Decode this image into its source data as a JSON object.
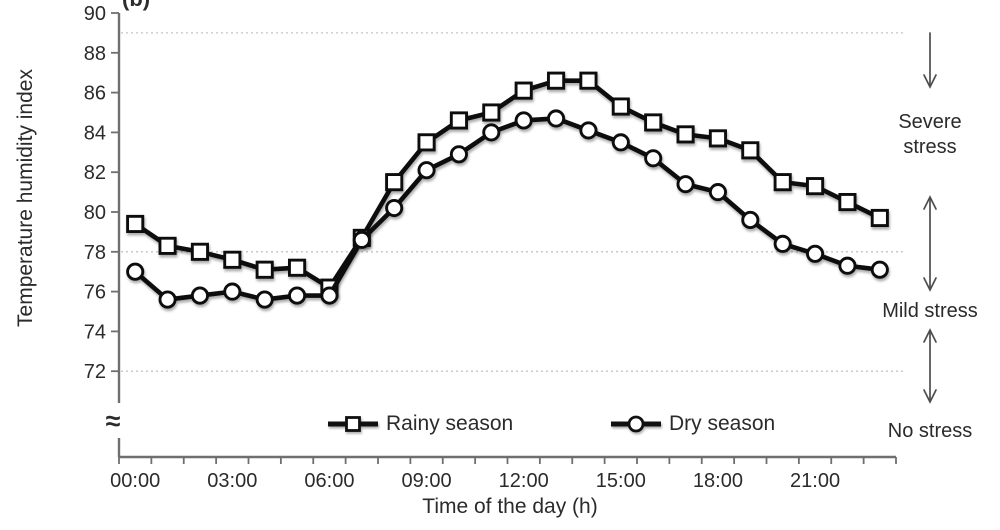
{
  "chart_data": {
    "type": "line",
    "panel_label": "(b)",
    "title": "",
    "xlabel": "Time of the day (h)",
    "ylabel": "Temperature humidity index",
    "x_categories": [
      "00:00",
      "01:00",
      "02:00",
      "03:00",
      "04:00",
      "05:00",
      "06:00",
      "07:00",
      "08:00",
      "09:00",
      "10:00",
      "11:00",
      "12:00",
      "13:00",
      "14:00",
      "15:00",
      "16:00",
      "17:00",
      "18:00",
      "19:00",
      "20:00",
      "21:00",
      "22:00",
      "23:00"
    ],
    "x_tick_labels": [
      "00:00",
      "03:00",
      "06:00",
      "09:00",
      "12:00",
      "15:00",
      "18:00",
      "21:00"
    ],
    "x_tick_label_hours": [
      0,
      3,
      6,
      9,
      12,
      15,
      18,
      21
    ],
    "y_ticks": [
      90,
      88,
      86,
      84,
      82,
      80,
      78,
      76,
      74,
      72
    ],
    "ylim": [
      72,
      90
    ],
    "y_axis_break_symbol": "≈",
    "dotted_gridlines_at": [
      89,
      78,
      72
    ],
    "grid": "dotted-horizontal",
    "legend_position": "bottom-inside",
    "series": [
      {
        "name": "Rainy season",
        "marker": "square",
        "values": [
          79.4,
          78.3,
          78.0,
          77.6,
          77.1,
          77.2,
          76.2,
          78.7,
          81.5,
          83.5,
          84.6,
          85.0,
          86.1,
          86.6,
          86.6,
          85.3,
          84.5,
          83.9,
          83.7,
          83.1,
          81.5,
          81.3,
          80.5,
          79.7
        ]
      },
      {
        "name": "Dry season",
        "marker": "circle",
        "values": [
          77.0,
          75.6,
          75.8,
          76.0,
          75.6,
          75.8,
          75.8,
          78.6,
          80.2,
          82.1,
          82.9,
          84.0,
          84.6,
          84.7,
          84.1,
          83.5,
          82.7,
          81.4,
          81.0,
          79.6,
          78.4,
          77.9,
          77.3,
          77.1
        ]
      }
    ],
    "annotations": [
      {
        "label": "Severe stress",
        "arrow": "down"
      },
      {
        "label": "Mild stress",
        "arrow": "up-down"
      },
      {
        "label": "No stress",
        "arrow": "up-down"
      }
    ]
  },
  "colors": {
    "line": "#111111",
    "marker_fill": "#ffffff",
    "grid": "#c4c4c4",
    "axis": "#6f6f6f",
    "text": "#2b2b2b",
    "arrow": "#4d4d4d"
  }
}
